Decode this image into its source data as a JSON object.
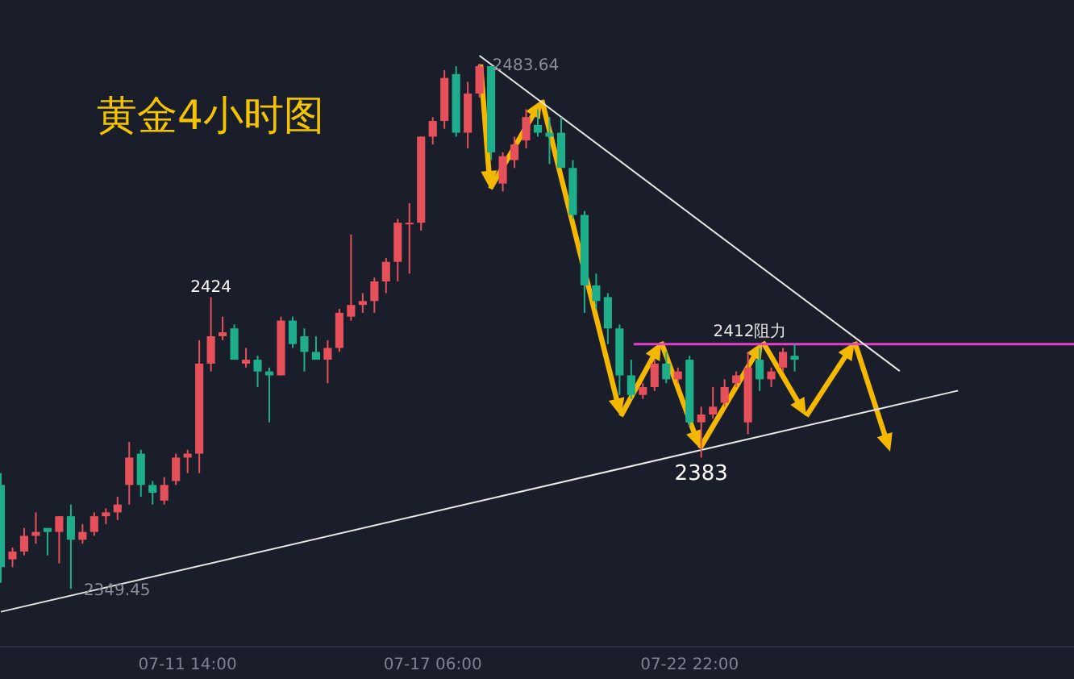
{
  "chart_data": {
    "type": "candlestick",
    "title": "黄金4小时图",
    "categories": [
      null,
      null,
      null,
      null,
      null,
      null,
      null,
      null,
      null,
      null,
      null,
      null,
      null,
      null,
      null,
      null,
      "07-11 14:00",
      null,
      null,
      null,
      null,
      null,
      null,
      null,
      null,
      null,
      null,
      null,
      null,
      null,
      null,
      null,
      null,
      null,
      null,
      null,
      null,
      "07-17 06:00",
      null,
      null,
      null,
      null,
      null,
      null,
      null,
      null,
      null,
      null,
      null,
      null,
      null,
      null,
      null,
      null,
      null,
      null,
      null,
      null,
      null,
      "07-22 22:00",
      null,
      null,
      null,
      null,
      null,
      null,
      null,
      null,
      null,
      null,
      null,
      null,
      null,
      null,
      null,
      null,
      null,
      null,
      null,
      null,
      null,
      null,
      null,
      null,
      null,
      null,
      null,
      null,
      null,
      null,
      null,
      null
    ],
    "ohlc": [
      [
        2376,
        2379,
        2351,
        2355
      ],
      [
        2357,
        2360,
        2355,
        2359
      ],
      [
        2359,
        2365,
        2358,
        2363
      ],
      [
        2363,
        2369,
        2361,
        2364
      ],
      [
        2365,
        2365,
        2358,
        2364
      ],
      [
        2364,
        2368,
        2356,
        2368
      ],
      [
        2368,
        2371,
        2349.45,
        2362
      ],
      [
        2362,
        2366,
        2361,
        2364
      ],
      [
        2364,
        2369,
        2363,
        2368
      ],
      [
        2368,
        2370,
        2366,
        2369
      ],
      [
        2369,
        2373,
        2367,
        2371
      ],
      [
        2376,
        2387,
        2371,
        2383
      ],
      [
        2384,
        2385,
        2373,
        2376
      ],
      [
        2376,
        2377,
        2371,
        2374
      ],
      [
        2372,
        2378,
        2371,
        2376
      ],
      [
        2377,
        2384,
        2376,
        2383
      ],
      [
        2383,
        2385,
        2379,
        2384
      ],
      [
        2384,
        2413,
        2379,
        2407
      ],
      [
        2407,
        2424,
        2405,
        2414
      ],
      [
        2414,
        2419,
        2413,
        2415
      ],
      [
        2416,
        2417,
        2408,
        2408
      ],
      [
        2407,
        2411,
        2406,
        2408
      ],
      [
        2408,
        2409,
        2401,
        2405
      ],
      [
        2405,
        2406,
        2392,
        2404
      ],
      [
        2404,
        2419,
        2404,
        2418
      ],
      [
        2418,
        2419,
        2411,
        2412
      ],
      [
        2414,
        2416,
        2405,
        2410
      ],
      [
        2410,
        2414,
        2408,
        2408
      ],
      [
        2408,
        2413,
        2402,
        2411
      ],
      [
        2411,
        2421,
        2410,
        2420
      ],
      [
        2419,
        2440,
        2418,
        2422
      ],
      [
        2422,
        2425,
        2420,
        2423
      ],
      [
        2423,
        2429,
        2420,
        2428
      ],
      [
        2428,
        2434,
        2425,
        2433
      ],
      [
        2433,
        2444,
        2428,
        2443
      ],
      [
        2443,
        2448,
        2430,
        2443
      ],
      [
        2443,
        2465,
        2441,
        2465
      ],
      [
        2465,
        2470,
        2463,
        2469
      ],
      [
        2469,
        2482,
        2467,
        2480
      ],
      [
        2481,
        2483,
        2465,
        2466
      ],
      [
        2466,
        2479,
        2462,
        2476
      ],
      [
        2476,
        2483.64,
        2475,
        2483
      ],
      [
        2483,
        2483,
        2459,
        2461
      ],
      [
        2453,
        2461,
        2451,
        2460
      ],
      [
        2459,
        2465,
        2457,
        2463
      ],
      [
        2464,
        2472,
        2462,
        2470
      ],
      [
        2468,
        2472,
        2465,
        2466
      ],
      [
        2466,
        2470,
        2458,
        2465
      ],
      [
        2466,
        2470,
        2457,
        2457
      ],
      [
        2457,
        2459,
        2444,
        2445
      ],
      [
        2445,
        2446,
        2420,
        2427
      ],
      [
        2427,
        2430,
        2421,
        2423
      ],
      [
        2424,
        2425,
        2412,
        2416
      ],
      [
        2416,
        2417,
        2399,
        2404
      ],
      [
        2404,
        2408,
        2398,
        2399
      ],
      [
        2399,
        2402,
        2398,
        2401
      ],
      [
        2401,
        2408,
        2400,
        2407
      ],
      [
        2407,
        2410,
        2402,
        2403
      ],
      [
        2403,
        2406,
        2402,
        2405
      ],
      [
        2408,
        2409,
        2391,
        2392
      ],
      [
        2392,
        2396,
        2383,
        2394
      ],
      [
        2394,
        2401,
        2393,
        2396
      ],
      [
        2397,
        2403,
        2396,
        2401
      ],
      [
        2402,
        2405,
        2401,
        2404
      ],
      [
        2392,
        2410,
        2389,
        2406
      ],
      [
        2408,
        2411,
        2400,
        2403
      ],
      [
        2403,
        2406,
        2401,
        2405
      ],
      [
        2406,
        2411,
        2405,
        2410
      ],
      [
        2409,
        2412,
        2405,
        2408
      ],
      null,
      null,
      null,
      null,
      null,
      null,
      null,
      null,
      null,
      null,
      null,
      null,
      null,
      null,
      null,
      null,
      null,
      null,
      null,
      null,
      null,
      null,
      null
    ],
    "colors": [
      "#1fae8c",
      "#e5505a",
      "#e5505a",
      "#e5505a",
      "#1fae8c",
      "#e5505a",
      "#1fae8c",
      "#e5505a",
      "#e5505a",
      "#e5505a",
      "#e5505a",
      "#e5505a",
      "#1fae8c",
      "#1fae8c",
      "#e5505a",
      "#e5505a",
      "#e5505a",
      "#e5505a",
      "#e5505a",
      "#e5505a",
      "#1fae8c",
      "#e5505a",
      "#1fae8c",
      "#1fae8c",
      "#e5505a",
      "#1fae8c",
      "#1fae8c",
      "#1fae8c",
      "#e5505a",
      "#e5505a",
      "#e5505a",
      "#e5505a",
      "#e5505a",
      "#e5505a",
      "#e5505a",
      "#e5505a",
      "#e5505a",
      "#e5505a",
      "#e5505a",
      "#1fae8c",
      "#e5505a",
      "#e5505a",
      "#1fae8c",
      "#e5505a",
      "#e5505a",
      "#e5505a",
      "#1fae8c",
      "#1fae8c",
      "#1fae8c",
      "#1fae8c",
      "#1fae8c",
      "#1fae8c",
      "#1fae8c",
      "#1fae8c",
      "#1fae8c",
      "#e5505a",
      "#e5505a",
      "#1fae8c",
      "#e5505a",
      "#1fae8c",
      "#e5505a",
      "#e5505a",
      "#e5505a",
      "#e5505a",
      "#e5505a",
      "#1fae8c",
      "#e5505a",
      "#e5505a",
      "#1fae8c",
      null,
      null,
      null,
      null,
      null,
      null,
      null,
      null,
      null,
      null,
      null,
      null,
      null,
      null,
      null,
      null,
      null,
      null,
      null,
      null,
      null,
      null,
      null
    ],
    "series": [
      {
        "type": "line",
        "color": "#e8e8e8",
        "values": [
          2343.6,
          null,
          null,
          null,
          null,
          null,
          null,
          null,
          null,
          null,
          null,
          null,
          null,
          null,
          null,
          null,
          null,
          null,
          null,
          null,
          null,
          null,
          null,
          null,
          null,
          null,
          null,
          null,
          null,
          null,
          null,
          null,
          null,
          null,
          null,
          null,
          null,
          null,
          null,
          null,
          null,
          null,
          null,
          null,
          null,
          null,
          null,
          null,
          null,
          null,
          null,
          null,
          null,
          null,
          null,
          null,
          null,
          null,
          null,
          null,
          null,
          null,
          null,
          null,
          null,
          null,
          null,
          null,
          null,
          null,
          null,
          null,
          null,
          null,
          null,
          null,
          null,
          null,
          null,
          null,
          null,
          null,
          2400.1,
          null,
          null,
          null,
          null,
          null,
          null,
          null,
          null,
          null
        ]
      },
      {
        "type": "line",
        "color": "#e8e8e8",
        "values": [
          null,
          null,
          null,
          null,
          null,
          null,
          null,
          null,
          null,
          null,
          null,
          null,
          null,
          null,
          null,
          null,
          null,
          null,
          null,
          null,
          null,
          null,
          null,
          null,
          null,
          null,
          null,
          null,
          null,
          null,
          null,
          null,
          null,
          null,
          null,
          null,
          null,
          null,
          null,
          null,
          null,
          2485.7,
          null,
          null,
          null,
          null,
          null,
          null,
          null,
          null,
          null,
          null,
          null,
          null,
          null,
          null,
          null,
          null,
          null,
          null,
          null,
          null,
          null,
          null,
          null,
          null,
          null,
          null,
          null,
          null,
          null,
          null,
          null,
          null,
          null,
          null,
          null,
          2405.1,
          null,
          null,
          null,
          null,
          null,
          null,
          null,
          null,
          null,
          null,
          null,
          null,
          null,
          null
        ]
      }
    ],
    "ref_lines": [
      {
        "axis": "y",
        "value": 2412,
        "label": "2412阻力",
        "color": "#e040c8"
      }
    ],
    "annotations": [
      "2483.64",
      "2349.45",
      {
        "text": "2424",
        "y": 2424
      },
      {
        "text": "2383",
        "y": 2383
      }
    ]
  }
}
